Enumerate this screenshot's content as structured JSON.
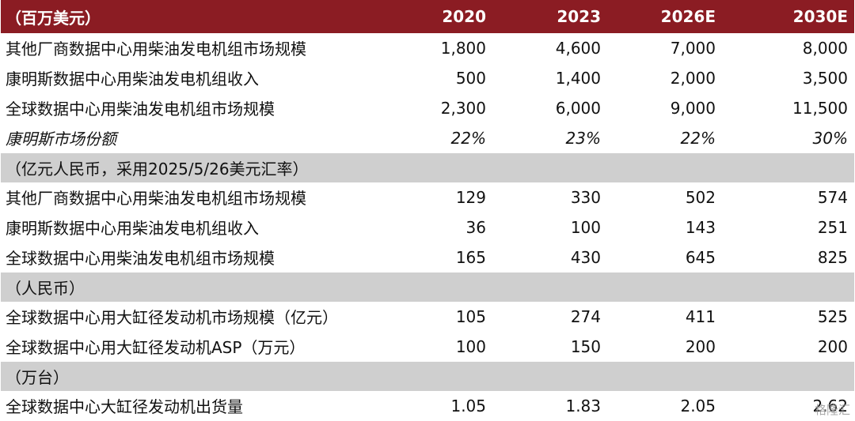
{
  "header": {
    "unit_label": "（百万美元）",
    "years": [
      "2020",
      "2023",
      "2026E",
      "2030E"
    ]
  },
  "sections": [
    {
      "title": "",
      "rows": [
        {
          "label": "其他厂商数据中心用柴油发电机组市场规模",
          "values": [
            "1,800",
            "4,600",
            "7,000",
            "8,000"
          ],
          "italic": false
        },
        {
          "label": "康明斯数据中心用柴油发电机组收入",
          "values": [
            "500",
            "1,400",
            "2,000",
            "3,500"
          ],
          "italic": false
        },
        {
          "label": "全球数据中心用柴油发电机组市场规模",
          "values": [
            "2,300",
            "6,000",
            "9,000",
            "11,500"
          ],
          "italic": false
        },
        {
          "label": "康明斯市场份额",
          "values": [
            "22%",
            "23%",
            "22%",
            "30%"
          ],
          "italic": true
        }
      ]
    },
    {
      "title": "（亿元人民币，采用2025/5/26美元汇率）",
      "rows": [
        {
          "label": "其他厂商数据中心用柴油发电机组市场规模",
          "values": [
            "129",
            "330",
            "502",
            "574"
          ],
          "italic": false
        },
        {
          "label": "康明斯数据中心用柴油发电机组收入",
          "values": [
            "36",
            "100",
            "143",
            "251"
          ],
          "italic": false
        },
        {
          "label": "全球数据中心用柴油发电机组市场规模",
          "values": [
            "165",
            "430",
            "645",
            "825"
          ],
          "italic": false
        }
      ]
    },
    {
      "title": "（人民币）",
      "rows": [
        {
          "label": "全球数据中心用大缸径发动机市场规模（亿元）",
          "values": [
            "105",
            "274",
            "411",
            "525"
          ],
          "italic": false
        },
        {
          "label": "全球数据中心用大缸径发动机ASP（万元）",
          "values": [
            "100",
            "150",
            "200",
            "200"
          ],
          "italic": false
        }
      ]
    },
    {
      "title": "（万台）",
      "rows": [
        {
          "label": "全球数据中心大缸径发动机出货量",
          "values": [
            "1.05",
            "1.83",
            "2.05",
            "2.62"
          ],
          "italic": false
        }
      ]
    }
  ],
  "watermark": "格隆汇",
  "colors": {
    "header_bg": "#8b1c23",
    "section_bg": "#cfcfcf"
  }
}
